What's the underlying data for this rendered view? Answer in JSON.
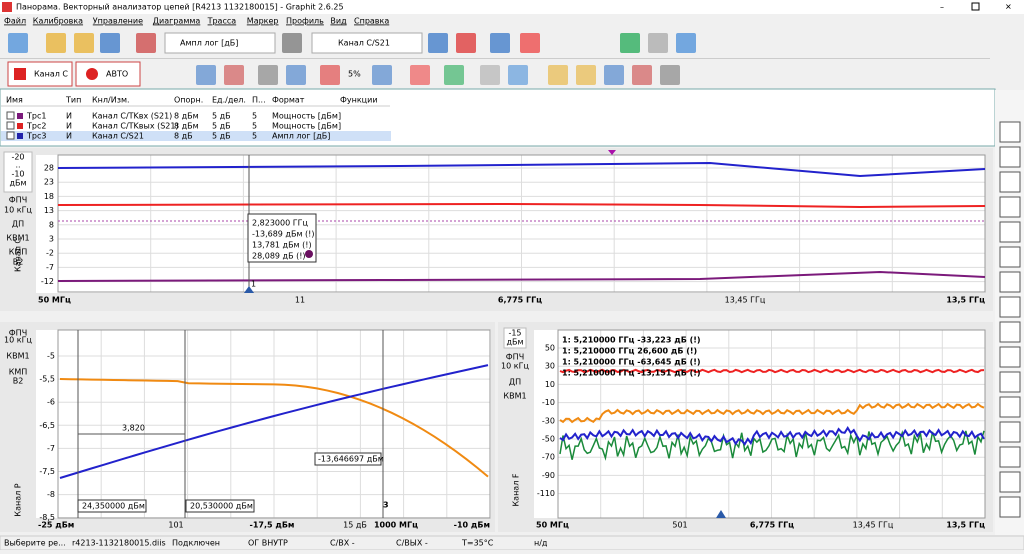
{
  "window": {
    "title": "Панорама. Векторный анализатор цепей [R4213 1132180015] - Graphit 2.6.25"
  },
  "menu": [
    "Файл",
    "Калибровка",
    "Управление",
    "Диаграмма",
    "Трасса",
    "Маркер",
    "Профиль",
    "Вид",
    "Справка"
  ],
  "toolbar": {
    "format": "Ампл лог [дБ]",
    "measurement": "Канал C/S21",
    "channel": "Канал C",
    "mode": "АВТО",
    "step": "5%"
  },
  "trace_table": {
    "header": [
      "Имя",
      "Тип",
      "Кнл/Изм.",
      "Опорн.",
      "Ед./дел.",
      "П...",
      "Формат",
      "Функции"
    ],
    "rows": [
      [
        "Трс1",
        "И",
        "Канал С/TKвх (S21)",
        "8 дБм",
        "5 дБ",
        "5",
        "Мощность [дБм]"
      ],
      [
        "Трс2",
        "И",
        "Канал С/TKвых (S21)",
        "8 дБм",
        "5 дБ",
        "5",
        "Мощность [дБм]"
      ],
      [
        "Трс3",
        "И",
        "Канал С/S21",
        "8 дБ",
        "5 дБ",
        "5",
        "Ампл лог [дБ]"
      ]
    ]
  },
  "top_chart": {
    "side": [
      "-20",
      "..",
      "-10",
      "дБм",
      "ФПЧ",
      "10 кГц",
      "ДП",
      "КВМ1",
      "КМП",
      "В2"
    ],
    "yticks": [
      "28",
      "23",
      "18",
      "13",
      "8",
      "3",
      "-2",
      "-7",
      "-12"
    ],
    "marker": [
      "2,823000 ГГц",
      "-13,689 дБм (!)",
      "13,781 дБм (!)",
      "28,089 дБ (!)"
    ],
    "marker_id": "1",
    "channel": "Канал C",
    "footer": [
      "50 МГц",
      "11",
      "6,775 ГГц",
      "13,45 ГГц",
      "13,5 ГГц"
    ]
  },
  "left_chart": {
    "side": [
      "ФПЧ",
      "10 кГц",
      "КВМ1",
      "КМП",
      "В2"
    ],
    "yticks": [
      "-5",
      "-5,5",
      "-6",
      "-6,5",
      "-7",
      "-7,5",
      "-8",
      "-8,5"
    ],
    "annotations": [
      "3,820",
      "-13,646697 дБм",
      "24,350000 дБм",
      "20,530000 дБм",
      "3"
    ],
    "channel": "Канал P",
    "footer": [
      "-25 дБм",
      "101",
      "-17,5 дБм",
      "15 дБ",
      "1000 МГц",
      "-10 дБм"
    ]
  },
  "right_chart": {
    "side": [
      "-15",
      "дБм",
      "ФПЧ",
      "10 кГц",
      "ДП",
      "КВМ1"
    ],
    "yticks": [
      "50",
      "30",
      "10",
      "-10",
      "-30",
      "-50",
      "-70",
      "-90",
      "-110"
    ],
    "legend": [
      "1: 5,210000 ГГц -33,223 дБ (!)",
      "1: 5,210000 ГГц 26,600 дБ (!)",
      "1: 5,210000 ГГц -63,645 дБ (!)",
      "1: 5,210000 ГГц -13,151 дБ (!)"
    ],
    "channel": "Канал F",
    "footer": [
      "50 МГц",
      "501",
      "6,775 ГГц",
      "13,45 ГГц",
      "13,5 ГГц"
    ]
  },
  "status": [
    "Выберите ре...",
    "r4213-1132180015.diis",
    "Подключен",
    "ОГ ВНУТР",
    "С/ВХ -",
    "С/ВЫХ -",
    "T=35°C",
    "н/д"
  ]
}
